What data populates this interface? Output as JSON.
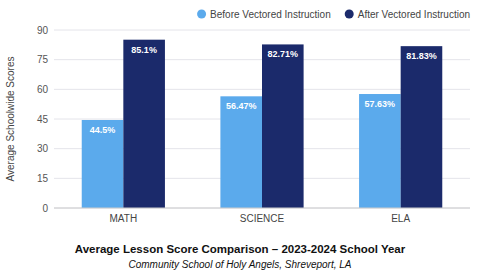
{
  "chart_data": {
    "type": "bar",
    "title": "Average Lesson Score Comparison – 2023-2024 School Year",
    "subtitle": "Community School of Holy Angels, Shreveport, LA",
    "ylabel": "Average Schoolwide Scores",
    "categories": [
      "MATH",
      "SCIENCE",
      "ELA"
    ],
    "series": [
      {
        "name": "Before Vectored Instruction",
        "color": "#5BAAEC",
        "values": [
          44.5,
          56.47,
          57.63
        ],
        "value_labels": [
          "44.5%",
          "56.47%",
          "57.63%"
        ]
      },
      {
        "name": "After Vectored Instruction",
        "color": "#1B2A6B",
        "values": [
          85.1,
          82.71,
          81.83
        ],
        "value_labels": [
          "85.1%",
          "82.71%",
          "81.83%"
        ]
      }
    ],
    "ylim": [
      0,
      90
    ],
    "yticks": [
      0,
      15,
      30,
      45,
      60,
      75,
      90
    ],
    "grid": true,
    "legend": "upper right",
    "data_labels": true
  }
}
